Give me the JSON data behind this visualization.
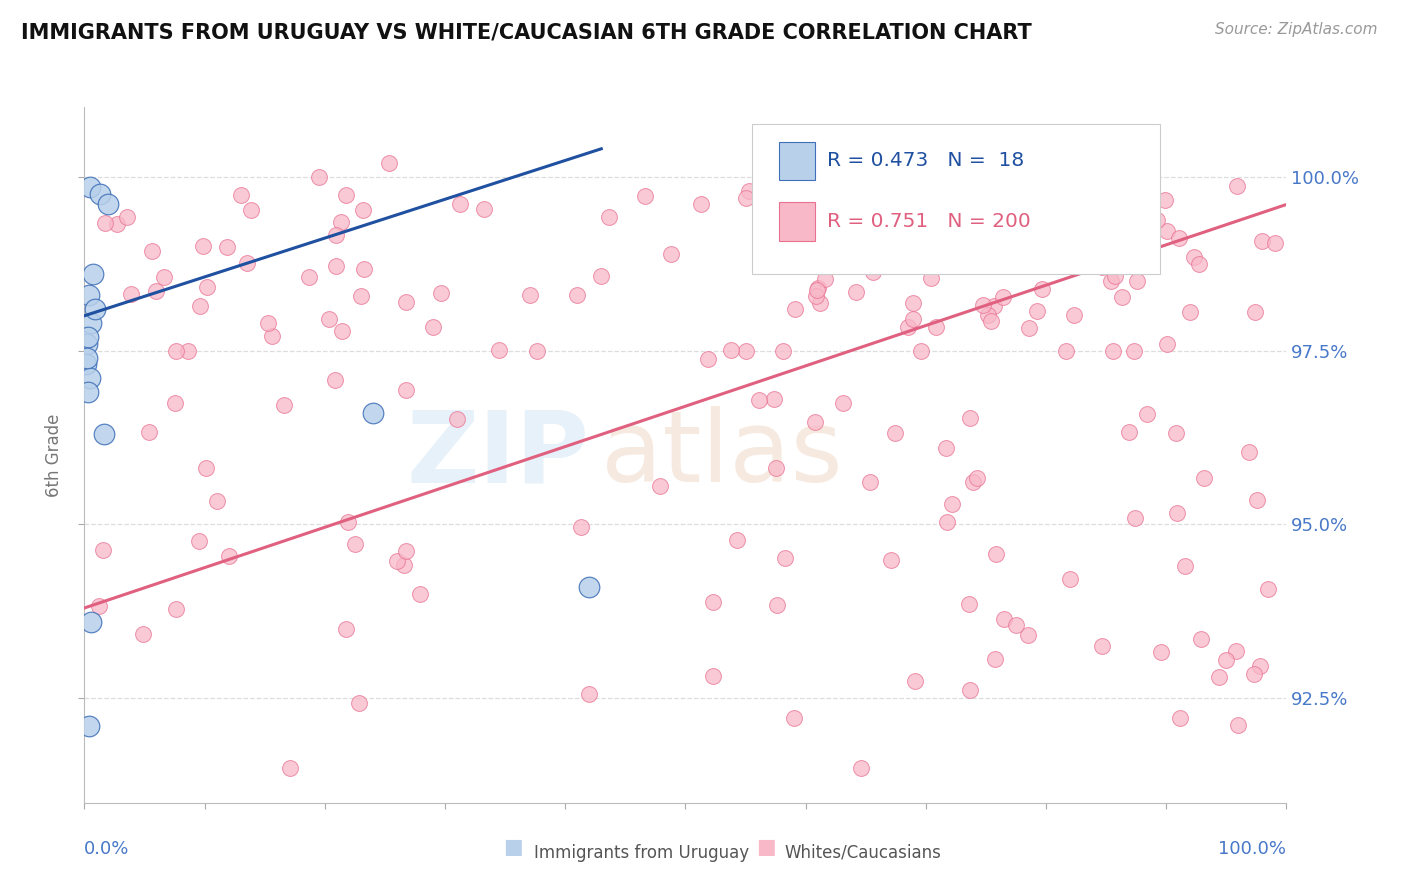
{
  "title": "IMMIGRANTS FROM URUGUAY VS WHITE/CAUCASIAN 6TH GRADE CORRELATION CHART",
  "source_text": "Source: ZipAtlas.com",
  "ylabel": "6th Grade",
  "r_blue": 0.473,
  "n_blue": 18,
  "r_pink": 0.751,
  "n_pink": 200,
  "blue_fill": "#b8d0ea",
  "blue_edge": "#4070b8",
  "pink_fill": "#f8b8c8",
  "pink_edge": "#e87090",
  "blue_line": "#2050a0",
  "pink_line": "#e06080",
  "axis_color": "#4878c8",
  "grid_color": "#dddddd",
  "legend_label1": "Immigrants from Uruguay",
  "legend_label2": "Whites/Caucasians",
  "xmin": 0.0,
  "xmax": 100.0,
  "ymin": 91.0,
  "ymax": 101.0,
  "yticks": [
    92.5,
    95.0,
    97.5,
    100.0
  ],
  "blue_x": [
    0.5,
    1.3,
    2.0,
    0.7,
    0.35,
    0.55,
    0.22,
    0.12,
    0.45,
    24.0,
    42.0,
    0.9,
    0.32,
    0.18,
    0.28,
    0.38,
    0.52,
    1.6
  ],
  "blue_y": [
    99.85,
    99.75,
    99.6,
    98.6,
    98.3,
    97.9,
    97.6,
    97.3,
    97.1,
    96.6,
    94.1,
    98.1,
    97.7,
    97.4,
    96.9,
    92.1,
    93.6,
    96.3
  ],
  "blue_trend_x": [
    0.0,
    43.0
  ],
  "blue_trend_y": [
    98.0,
    100.4
  ],
  "pink_trend_x": [
    0.0,
    100.0
  ],
  "pink_trend_y": [
    93.8,
    99.6
  ]
}
